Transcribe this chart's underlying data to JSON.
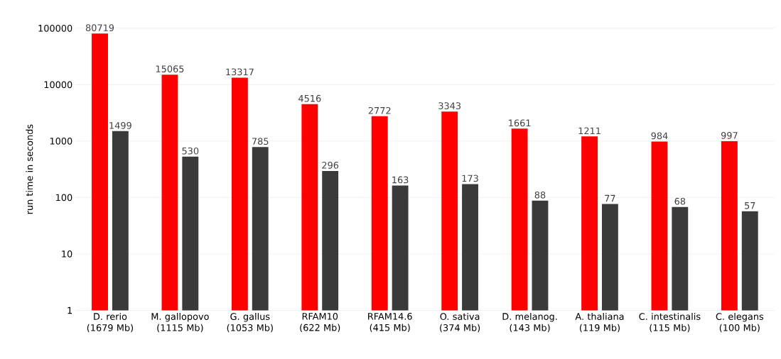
{
  "chart_data": {
    "type": "bar",
    "ylabel": "run time in seconds",
    "categories": [
      "D. rerio (1679 Mb)",
      "M. gallopovo (1115 Mb)",
      "G. gallus (1053 Mb)",
      "RFAM10 (622 Mb)",
      "RFAM14.6 (415 Mb)",
      "O. sativa (374 Mb)",
      "D. melanog. (143 Mb)",
      "A. thaliana (119 Mb)",
      "C. intestinalis (115 Mb)",
      "C. elegans (100 Mb)"
    ],
    "series": [
      {
        "color": "#ff0000",
        "values": [
          80719,
          15065,
          13317,
          4516,
          2772,
          3343,
          1661,
          1211,
          984,
          997
        ],
        "value_labels": [
          "80719",
          "15065",
          "13317",
          "4516",
          "2772",
          "3343",
          "1661",
          "1211",
          "984",
          "997"
        ]
      },
      {
        "color": "#3a3a3a",
        "values": [
          1499,
          530,
          785,
          296,
          163,
          173,
          88,
          77,
          68,
          57
        ],
        "value_labels": [
          "1499",
          "530",
          "785",
          "296",
          "163",
          "173",
          "88",
          "77",
          "68",
          "57"
        ]
      }
    ],
    "log": true,
    "ylim": [
      1,
      100000
    ],
    "yticks": [
      1,
      10,
      100,
      1000,
      10000,
      100000
    ],
    "grid": "y"
  }
}
